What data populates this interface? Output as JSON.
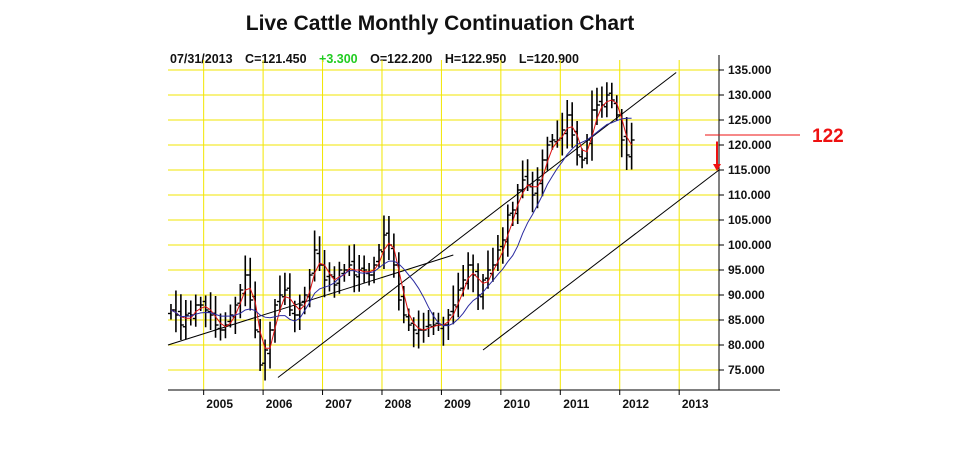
{
  "title": "Live Cattle Monthly Continuation Chart",
  "quote": {
    "date": "07/31/2013",
    "close": "C=121.450",
    "change": "+3.300",
    "open": "O=122.200",
    "high": "H=122.950",
    "low": "L=120.900"
  },
  "colors": {
    "grid": "#f2e600",
    "bars": "#000000",
    "ma_fast": "#dd1111",
    "ma_slow": "#2a2aa0",
    "channel": "#000000",
    "target": "#ee1111",
    "change_up": "#22cc22"
  },
  "chart_data": {
    "type": "ohlc-bar",
    "title": "Live Cattle Monthly Continuation Chart",
    "ylim": [
      71,
      137
    ],
    "xlim": [
      2004.4,
      2013.67
    ],
    "grid": true,
    "y_ticks": [
      "75.000",
      "80.000",
      "85.000",
      "90.000",
      "95.000",
      "100.000",
      "105.000",
      "110.000",
      "115.000",
      "120.000",
      "125.000",
      "130.000",
      "135.000"
    ],
    "x_ticks": [
      {
        "label": "2005",
        "x": 2005.0
      },
      {
        "label": "2006",
        "x": 2006.0
      },
      {
        "label": "2007",
        "x": 2007.0
      },
      {
        "label": "2008",
        "x": 2008.0
      },
      {
        "label": "2009",
        "x": 2009.0
      },
      {
        "label": "2010",
        "x": 2010.0
      },
      {
        "label": "2011",
        "x": 2011.0
      },
      {
        "label": "2012",
        "x": 2012.0
      },
      {
        "label": "2013",
        "x": 2013.0
      }
    ],
    "series_close": [
      87,
      86,
      84,
      86,
      86,
      88,
      88,
      87,
      86,
      84,
      83,
      84,
      86,
      88,
      91,
      94,
      89,
      83,
      76,
      79,
      83,
      88,
      90,
      91,
      87,
      86,
      88,
      90,
      94,
      99,
      96,
      93,
      94,
      92,
      95,
      95,
      96,
      94,
      95,
      95,
      94,
      96,
      99,
      102,
      100,
      96,
      89,
      86,
      84,
      83,
      83,
      83,
      84,
      84,
      84,
      84,
      86,
      88,
      91,
      93,
      96,
      94,
      90,
      93,
      95,
      96,
      99,
      101,
      106,
      107,
      111,
      113,
      112,
      110,
      113,
      117,
      120,
      121,
      121,
      123,
      126,
      122,
      118,
      117,
      121,
      127,
      128,
      128,
      130,
      129,
      126,
      121,
      118,
      121
    ],
    "moving_averages": [
      {
        "name": "",
        "period": 3,
        "color": "#dd1111"
      },
      {
        "name": "",
        "period": 9,
        "color": "#2a2aa0"
      }
    ],
    "channel_lines": [
      {
        "x1": 2006.25,
        "y1": 73.5,
        "x2": 2012.95,
        "y2": 134.5
      },
      {
        "x1": 2009.7,
        "y1": 79,
        "x2": 2013.67,
        "y2": 115
      },
      {
        "x1": 2004.4,
        "y1": 80,
        "x2": 2009.2,
        "y2": 98
      }
    ],
    "annotations": [
      {
        "text": "122",
        "price": 122
      }
    ]
  }
}
